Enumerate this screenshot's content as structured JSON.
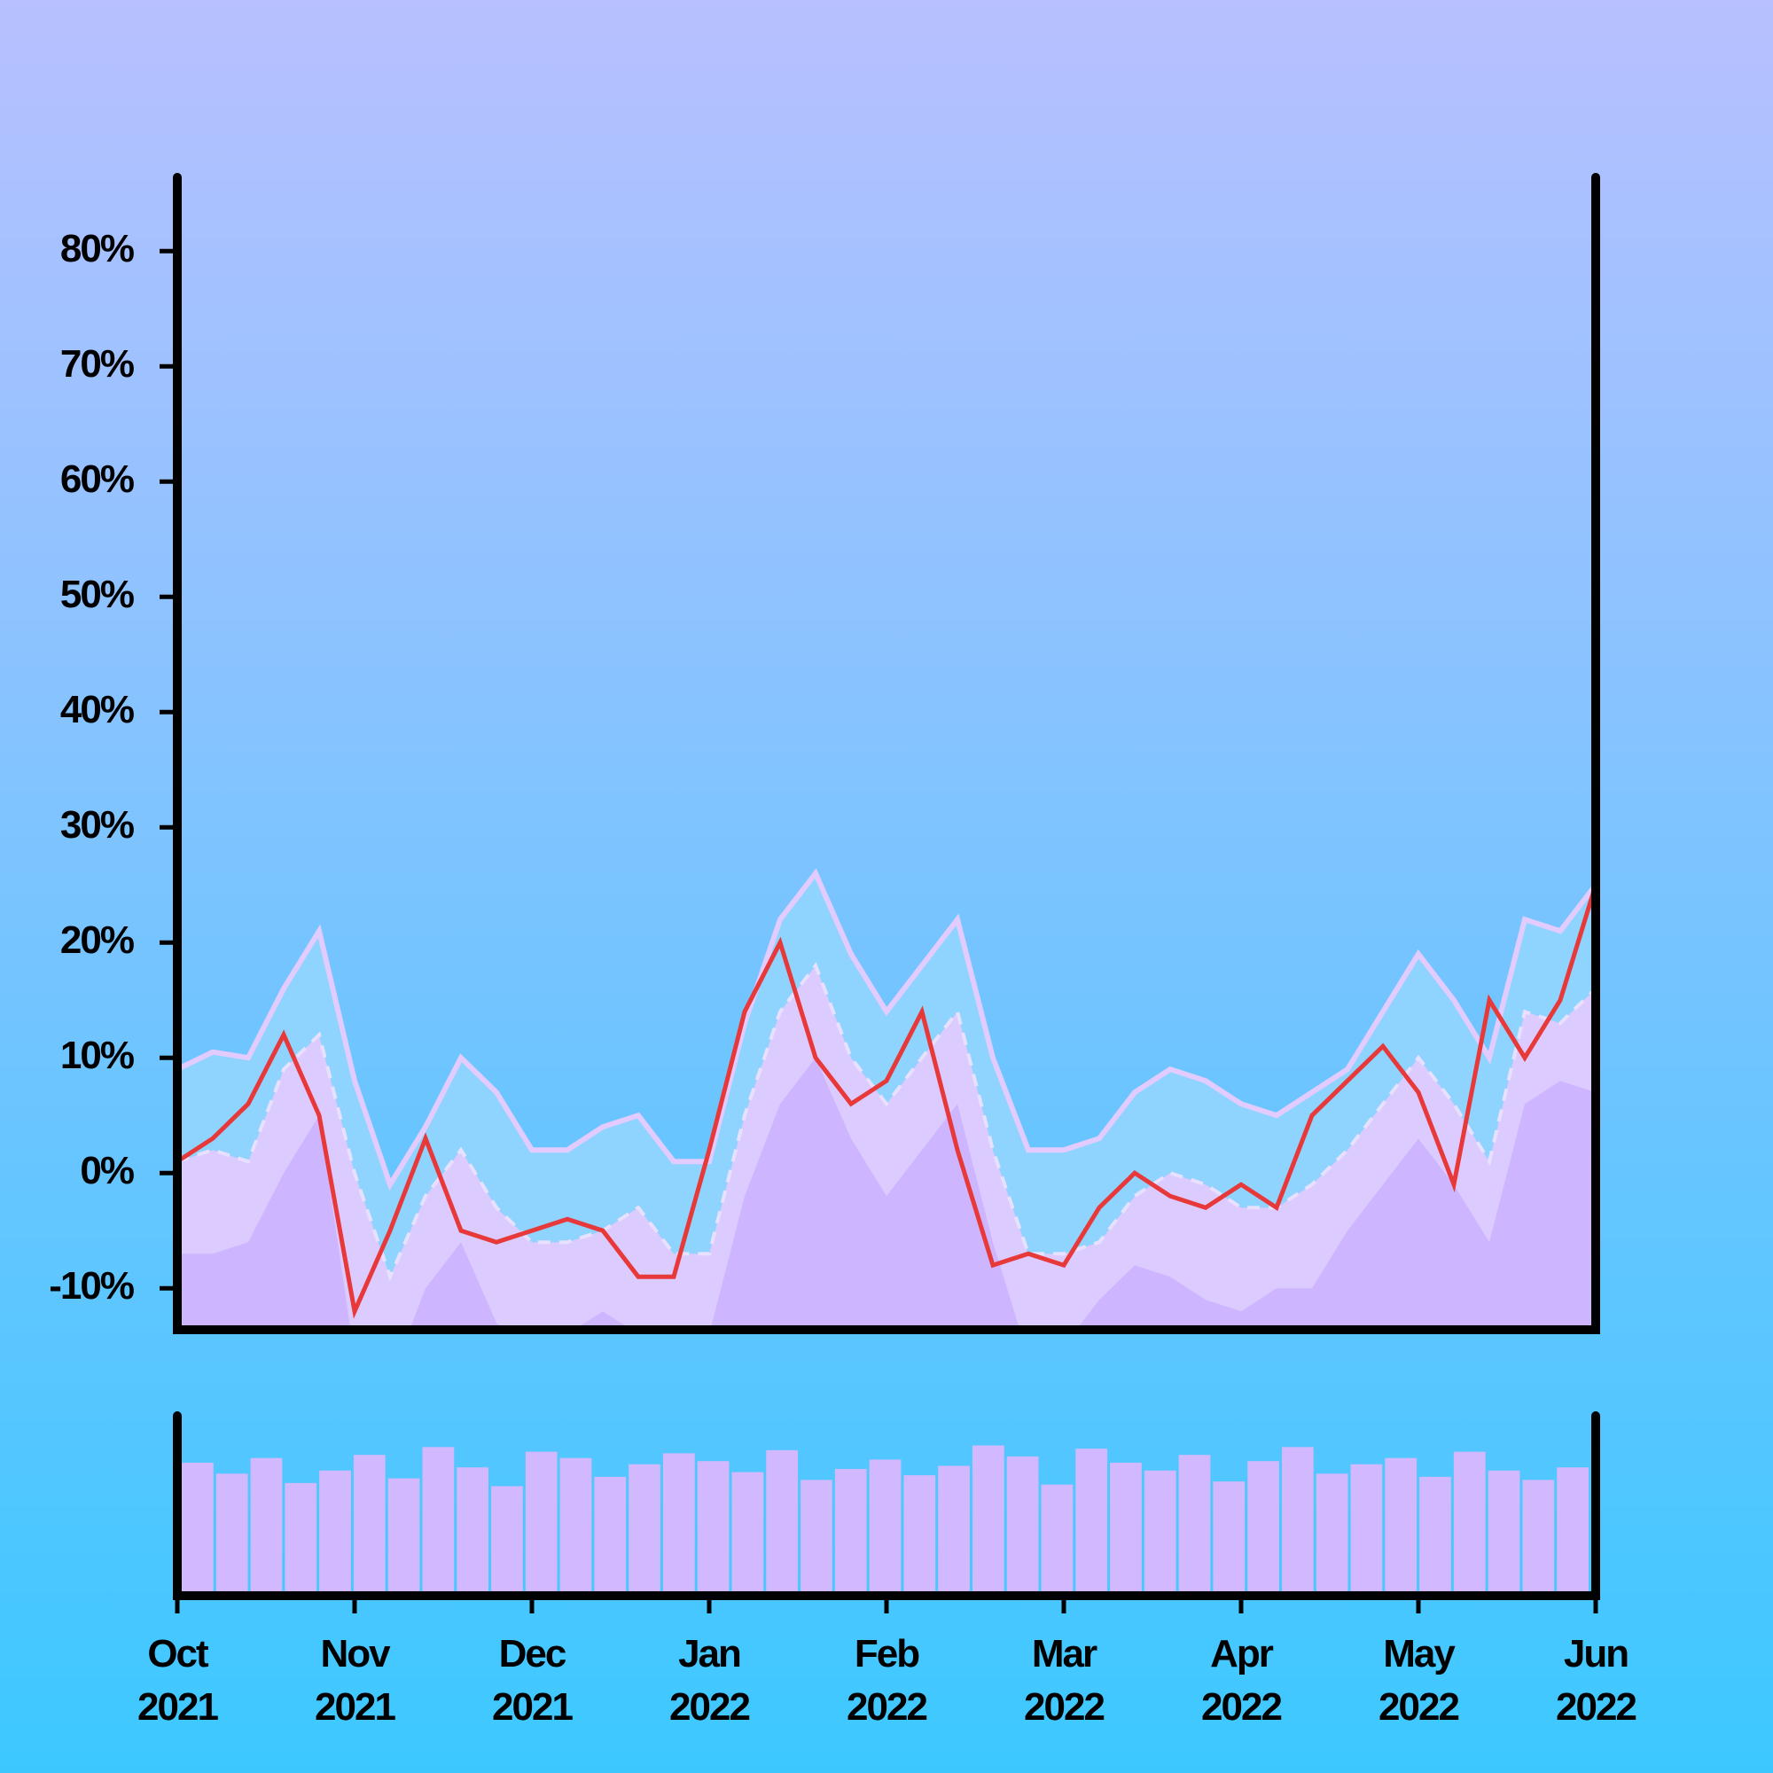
{
  "chart_data": [
    {
      "type": "line",
      "ylim": [
        -13.6,
        86.4
      ],
      "yticks": [
        {
          "value": -10,
          "label": "-10%"
        },
        {
          "value": 0,
          "label": "0%"
        },
        {
          "value": 10,
          "label": "10%"
        },
        {
          "value": 20,
          "label": "20%"
        },
        {
          "value": 30,
          "label": "30%"
        },
        {
          "value": 40,
          "label": "40%"
        },
        {
          "value": 50,
          "label": "50%"
        },
        {
          "value": 60,
          "label": "60%"
        },
        {
          "value": 70,
          "label": "70%"
        },
        {
          "value": 80,
          "label": "80%"
        }
      ],
      "series": [
        {
          "color": "#e2ccff",
          "fill": "#8fd3ff",
          "values": [
            9,
            10.5,
            10,
            16,
            21,
            8,
            -1,
            4,
            10,
            7,
            2,
            2,
            4,
            5,
            1,
            1,
            13,
            22,
            26,
            19,
            14,
            18,
            22,
            10,
            2,
            2,
            3,
            7,
            9,
            8,
            6,
            5,
            7,
            9,
            14,
            19,
            15,
            10,
            22,
            21,
            25
          ]
        },
        {
          "color": "#e8e0ff",
          "fill": "#dccbff",
          "dashed": true,
          "values": [
            1,
            2,
            1,
            9,
            12,
            0,
            -9,
            -2,
            2,
            -3,
            -6,
            -6,
            -5,
            -3,
            -7,
            -7,
            5,
            14,
            18,
            10,
            6,
            10,
            14,
            2,
            -7,
            -7,
            -6,
            -2,
            0,
            -1,
            -3,
            -3,
            -1,
            2,
            6,
            10,
            6,
            1,
            14,
            13,
            16
          ]
        },
        {
          "fill": "#cdb6ff",
          "values": [
            -7,
            -7,
            -6,
            0,
            5,
            -16,
            -18,
            -10,
            -6,
            -13,
            -15,
            -14,
            -12,
            -14,
            -18,
            -14,
            -2,
            6,
            10,
            3,
            -2,
            2,
            6,
            -6,
            -16,
            -15,
            -11,
            -8,
            -9,
            -11,
            -12,
            -10,
            -10,
            -5,
            -1,
            3,
            -1,
            -6,
            6,
            8,
            7
          ]
        },
        {
          "color": "#e8393a",
          "values": [
            1,
            3,
            6,
            12,
            5,
            -12,
            -5,
            3,
            -5,
            -6,
            -5,
            -4,
            -5,
            -9,
            -9,
            2,
            14,
            20,
            10,
            6,
            8,
            14,
            2,
            -8,
            -7,
            -8,
            -3,
            0,
            -2,
            -3,
            -1,
            -3,
            5,
            8,
            11,
            7,
            -1,
            15,
            10,
            15,
            25
          ]
        }
      ]
    },
    {
      "type": "bar",
      "color": "#d2b8ff",
      "ylim": [
        0,
        115
      ],
      "values": [
        85,
        78,
        88,
        72,
        80,
        90,
        75,
        95,
        82,
        70,
        92,
        88,
        76,
        84,
        91,
        86,
        79,
        93,
        74,
        81,
        87,
        77,
        83,
        96,
        89,
        71,
        94,
        85,
        80,
        90,
        73,
        86,
        95,
        78,
        84,
        88,
        76,
        92,
        80,
        74,
        82
      ],
      "xlim": [
        "2021-10",
        "2022-06"
      ],
      "xticks": [
        {
          "value": "2021-10",
          "label": "Oct\n2021"
        },
        {
          "value": "2021-11",
          "label": "Nov\n2021"
        },
        {
          "value": "2021-12",
          "label": "Dec\n2021"
        },
        {
          "value": "2022-01",
          "label": "Jan\n2022"
        },
        {
          "value": "2022-02",
          "label": "Feb\n2022"
        },
        {
          "value": "2022-03",
          "label": "Mar\n2022"
        },
        {
          "value": "2022-04",
          "label": "Apr\n2022"
        },
        {
          "value": "2022-05",
          "label": "May\n2022"
        },
        {
          "value": "2022-06",
          "label": "Jun\n2022"
        }
      ]
    }
  ]
}
